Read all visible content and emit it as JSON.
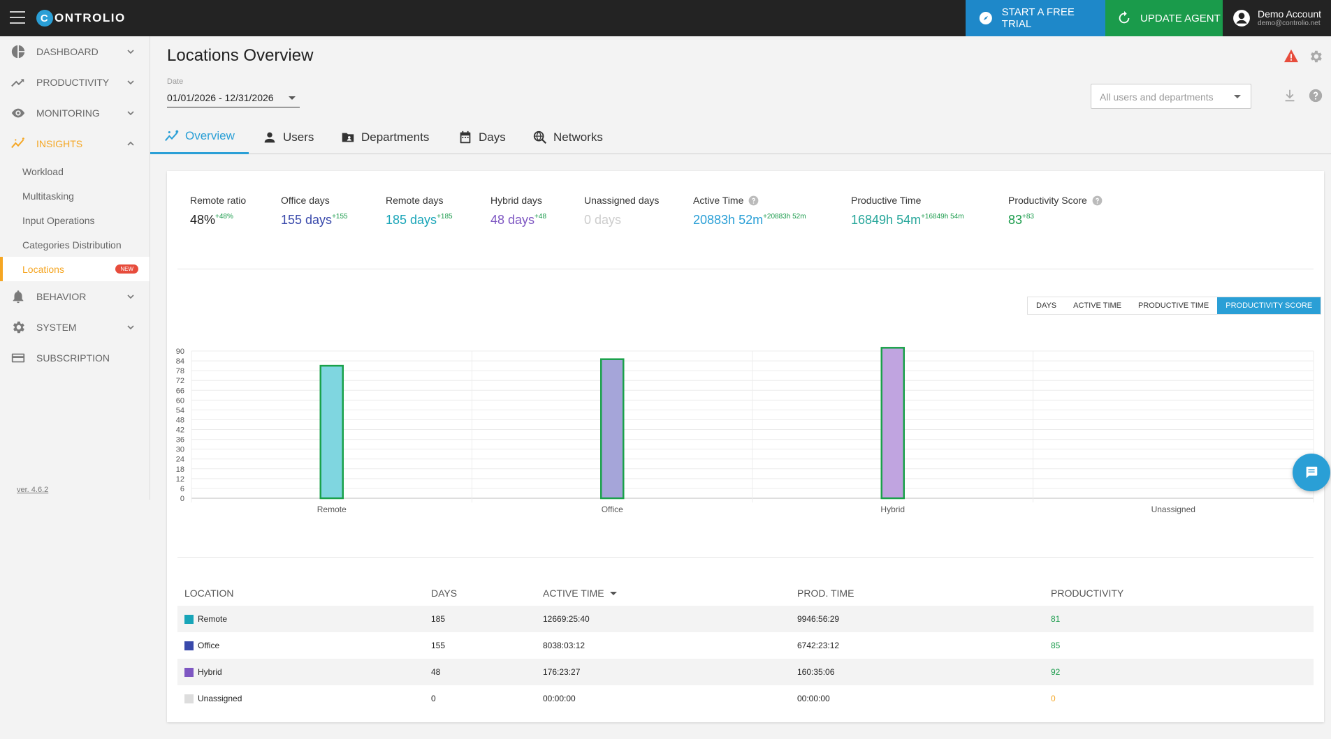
{
  "app": {
    "logo_letter": "C",
    "logo_text": "ONTROLIO"
  },
  "topbar": {
    "trial_label": "START A FREE TRIAL",
    "update_label": "UPDATE AGENT",
    "account_name": "Demo Account",
    "account_email": "demo@controlio.net"
  },
  "sidebar": {
    "items": [
      {
        "label": "DASHBOARD",
        "icon": "pie-chart-icon"
      },
      {
        "label": "PRODUCTIVITY",
        "icon": "trend-icon"
      },
      {
        "label": "MONITORING",
        "icon": "eye-icon"
      },
      {
        "label": "INSIGHTS",
        "icon": "insights-icon"
      },
      {
        "label": "BEHAVIOR",
        "icon": "bell-icon"
      },
      {
        "label": "SYSTEM",
        "icon": "gear-icon"
      },
      {
        "label": "SUBSCRIPTION",
        "icon": "card-icon"
      }
    ],
    "sub_items": [
      "Workload",
      "Multitasking",
      "Input Operations",
      "Categories Distribution",
      "Locations"
    ],
    "new_badge": "NEW",
    "version": "ver. 4.6.2"
  },
  "page": {
    "title": "Locations Overview",
    "date_label": "Date",
    "date_value": "01/01/2026 - 12/31/2026",
    "user_filter_placeholder": "All users and departments"
  },
  "tabs": [
    "Overview",
    "Users",
    "Departments",
    "Days",
    "Networks"
  ],
  "stats": [
    {
      "label": "Remote ratio",
      "value": "48%",
      "delta": "+48%",
      "color": "#222222"
    },
    {
      "label": "Office days",
      "value": "155 days",
      "delta": "+155",
      "color": "#3949ab"
    },
    {
      "label": "Remote days",
      "value": "185 days",
      "delta": "+185",
      "color": "#1aa5b8"
    },
    {
      "label": "Hybrid days",
      "value": "48 days",
      "delta": "+48",
      "color": "#7e57c2"
    },
    {
      "label": "Unassigned days",
      "value": "0 days",
      "delta": "",
      "color": "#cccccc"
    },
    {
      "label": "Active Time",
      "value": "20883h 52m",
      "delta": "+20883h 52m",
      "color": "#2a9fd6"
    },
    {
      "label": "Productive Time",
      "value": "16849h 54m",
      "delta": "+16849h 54m",
      "color": "#26a69a"
    },
    {
      "label": "Productivity Score",
      "value": "83",
      "delta": "+83",
      "color": "#1a9b4b"
    }
  ],
  "chart_toggle": [
    "DAYS",
    "ACTIVE TIME",
    "PRODUCTIVE TIME",
    "PRODUCTIVITY SCORE"
  ],
  "chart_data": {
    "type": "bar",
    "categories": [
      "Remote",
      "Office",
      "Hybrid",
      "Unassigned"
    ],
    "values": [
      81,
      85,
      92,
      0
    ],
    "colors": [
      "#7fd6e0",
      "#a5a5d9",
      "#c0a4e0",
      "#dddddd"
    ],
    "border_color": "#1aa14a",
    "ylim": [
      0,
      90
    ],
    "yticks": [
      0,
      6,
      12,
      18,
      24,
      30,
      36,
      42,
      48,
      54,
      60,
      66,
      72,
      78,
      84,
      90
    ],
    "grid": true
  },
  "table": {
    "headers": [
      "LOCATION",
      "DAYS",
      "ACTIVE TIME",
      "PROD. TIME",
      "PRODUCTIVITY"
    ],
    "rows": [
      {
        "location": "Remote",
        "days": "185",
        "active": "12669:25:40",
        "prod": "9946:56:29",
        "productivity": "81",
        "swatch": "#18a5b8",
        "pcolor": "#1a9b4b"
      },
      {
        "location": "Office",
        "days": "155",
        "active": "8038:03:12",
        "prod": "6742:23:12",
        "productivity": "85",
        "swatch": "#3949ab",
        "pcolor": "#1a9b4b"
      },
      {
        "location": "Hybrid",
        "days": "48",
        "active": "176:23:27",
        "prod": "160:35:06",
        "productivity": "92",
        "swatch": "#7e57c2",
        "pcolor": "#1a9b4b"
      },
      {
        "location": "Unassigned",
        "days": "0",
        "active": "00:00:00",
        "prod": "00:00:00",
        "productivity": "0",
        "swatch": "#dddddd",
        "pcolor": "#f5a623"
      }
    ]
  }
}
